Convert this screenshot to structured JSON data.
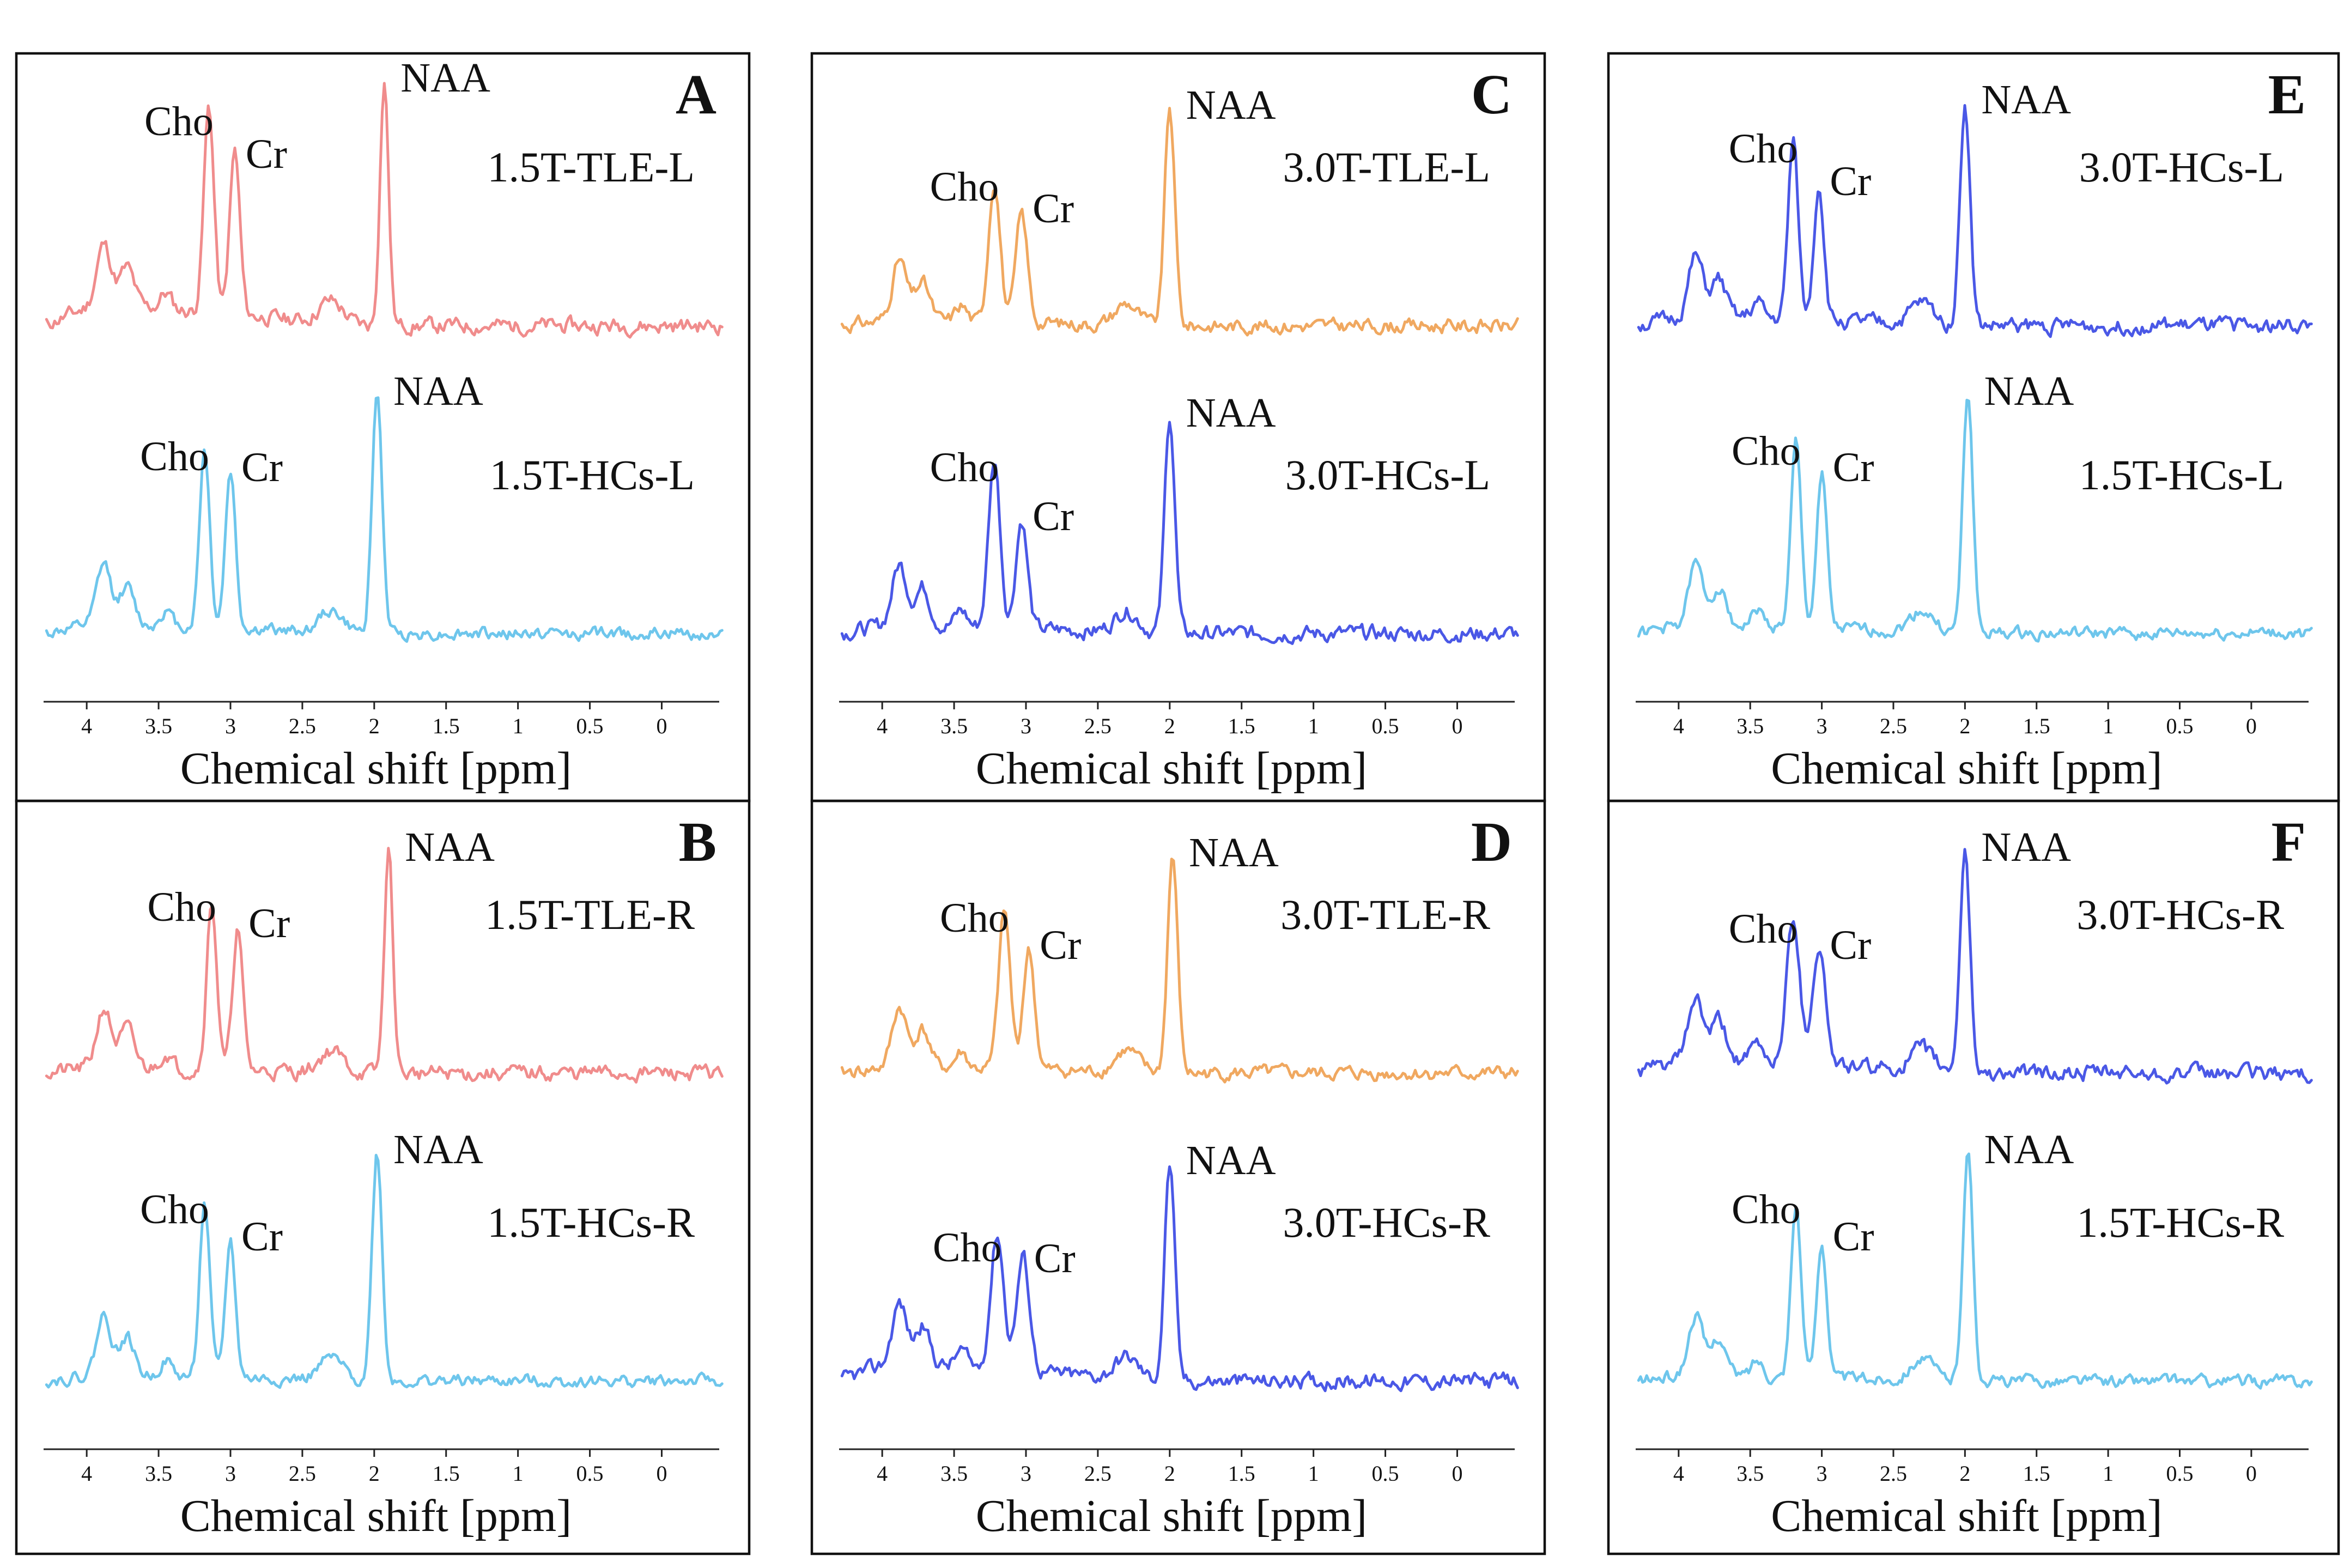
{
  "chart_data": [
    {
      "type": "line",
      "panel": "A",
      "xlabel": "Chemical shift [ppm]",
      "xlim": [
        4.3,
        -0.4
      ],
      "xticks": [
        "4",
        "3.5",
        "3",
        "2.5",
        "2",
        "1.5",
        "1",
        "0.5",
        "0"
      ],
      "series": [
        {
          "name": "1.5T-TLE-L",
          "color": "#F08C8C",
          "seed": 11,
          "noise": 9,
          "baseline_drift": 0.35,
          "peaks": [
            {
              "label": "Cho",
              "ppm": 3.15,
              "amp": 380,
              "width": 0.035
            },
            {
              "label": "Cr",
              "ppm": 2.97,
              "amp": 300,
              "width": 0.035
            },
            {
              "label": "NAA",
              "ppm": 1.93,
              "amp": 450,
              "width": 0.03
            }
          ]
        },
        {
          "name": "1.5T-HCs-L",
          "color": "#6EC6EC",
          "seed": 12,
          "noise": 7,
          "baseline_drift": 0.15,
          "peaks": [
            {
              "label": "Cho",
              "ppm": 3.18,
              "amp": 330,
              "width": 0.035
            },
            {
              "label": "Cr",
              "ppm": 3.0,
              "amp": 290,
              "width": 0.035
            },
            {
              "label": "NAA",
              "ppm": 1.98,
              "amp": 440,
              "width": 0.035
            }
          ]
        }
      ]
    },
    {
      "type": "line",
      "panel": "B",
      "xlabel": "Chemical shift [ppm]",
      "xlim": [
        4.3,
        -0.4
      ],
      "xticks": [
        "4",
        "3.5",
        "3",
        "2.5",
        "2",
        "1.5",
        "1",
        "0.5",
        "0"
      ],
      "series": [
        {
          "name": "1.5T-TLE-R",
          "color": "#F08C8C",
          "seed": 21,
          "noise": 9,
          "baseline_drift": 0.1,
          "peaks": [
            {
              "label": "Cho",
              "ppm": 3.13,
              "amp": 310,
              "width": 0.035
            },
            {
              "label": "Cr",
              "ppm": 2.95,
              "amp": 260,
              "width": 0.035
            },
            {
              "label": "NAA",
              "ppm": 1.9,
              "amp": 410,
              "width": 0.03
            }
          ]
        },
        {
          "name": "1.5T-HCs-R",
          "color": "#6EC6EC",
          "seed": 22,
          "noise": 7,
          "baseline_drift": 0.1,
          "peaks": [
            {
              "label": "Cho",
              "ppm": 3.18,
              "amp": 320,
              "width": 0.035
            },
            {
              "label": "Cr",
              "ppm": 3.0,
              "amp": 250,
              "width": 0.035
            },
            {
              "label": "NAA",
              "ppm": 1.98,
              "amp": 420,
              "width": 0.035
            }
          ]
        }
      ]
    },
    {
      "type": "line",
      "panel": "C",
      "xlabel": "Chemical shift [ppm]",
      "xlim": [
        4.3,
        -0.4
      ],
      "xticks": [
        "4",
        "3.5",
        "3",
        "2.5",
        "2",
        "1.5",
        "1",
        "0.5",
        "0"
      ],
      "series": [
        {
          "name": "3.0T-TLE-L",
          "color": "#F0A860",
          "seed": 31,
          "noise": 8,
          "baseline_drift": 0.1,
          "peaks": [
            {
              "label": "Cho",
              "ppm": 3.22,
              "amp": 260,
              "width": 0.04
            },
            {
              "label": "Cr",
              "ppm": 3.03,
              "amp": 200,
              "width": 0.04
            },
            {
              "label": "NAA",
              "ppm": 2.0,
              "amp": 400,
              "width": 0.035
            }
          ]
        },
        {
          "name": "3.0T-HCs-L",
          "color": "#4A58E6",
          "seed": 32,
          "noise": 9,
          "baseline_drift": 0.15,
          "peaks": [
            {
              "label": "Cho",
              "ppm": 3.22,
              "amp": 310,
              "width": 0.04
            },
            {
              "label": "Cr",
              "ppm": 3.03,
              "amp": 200,
              "width": 0.04
            },
            {
              "label": "NAA",
              "ppm": 2.0,
              "amp": 400,
              "width": 0.035
            }
          ]
        }
      ]
    },
    {
      "type": "line",
      "panel": "D",
      "xlabel": "Chemical shift [ppm]",
      "xlim": [
        4.3,
        -0.4
      ],
      "xticks": [
        "4",
        "3.5",
        "3",
        "2.5",
        "2",
        "1.5",
        "1",
        "0.5",
        "0"
      ],
      "series": [
        {
          "name": "3.0T-TLE-R",
          "color": "#F0A860",
          "seed": 41,
          "noise": 8,
          "baseline_drift": 0.1,
          "peaks": [
            {
              "label": "Cho",
              "ppm": 3.15,
              "amp": 290,
              "width": 0.04
            },
            {
              "label": "Cr",
              "ppm": 2.98,
              "amp": 220,
              "width": 0.04
            },
            {
              "label": "NAA",
              "ppm": 1.98,
              "amp": 400,
              "width": 0.035
            }
          ]
        },
        {
          "name": "3.0T-HCs-R",
          "color": "#4A58E6",
          "seed": 42,
          "noise": 9,
          "baseline_drift": 0.3,
          "peaks": [
            {
              "label": "Cho",
              "ppm": 3.2,
              "amp": 250,
              "width": 0.045
            },
            {
              "label": "Cr",
              "ppm": 3.02,
              "amp": 210,
              "width": 0.045
            },
            {
              "label": "NAA",
              "ppm": 2.0,
              "amp": 400,
              "width": 0.035
            }
          ]
        }
      ]
    },
    {
      "type": "line",
      "panel": "E",
      "xlabel": "Chemical shift [ppm]",
      "xlim": [
        4.3,
        -0.4
      ],
      "xticks": [
        "4",
        "3.5",
        "3",
        "2.5",
        "2",
        "1.5",
        "1",
        "0.5",
        "0"
      ],
      "series": [
        {
          "name": "3.0T-HCs-L",
          "color": "#4A58E6",
          "seed": 51,
          "noise": 9,
          "baseline_drift": 0.15,
          "peaks": [
            {
              "label": "Cho",
              "ppm": 3.2,
              "amp": 330,
              "width": 0.035
            },
            {
              "label": "Cr",
              "ppm": 3.02,
              "amp": 250,
              "width": 0.035
            },
            {
              "label": "NAA",
              "ppm": 2.0,
              "amp": 410,
              "width": 0.035
            }
          ]
        },
        {
          "name": "1.5T-HCs-L",
          "color": "#6EC6EC",
          "seed": 52,
          "noise": 7,
          "baseline_drift": 0.15,
          "peaks": [
            {
              "label": "Cho",
              "ppm": 3.18,
              "amp": 340,
              "width": 0.035
            },
            {
              "label": "Cr",
              "ppm": 3.0,
              "amp": 290,
              "width": 0.035
            },
            {
              "label": "NAA",
              "ppm": 1.98,
              "amp": 440,
              "width": 0.035
            }
          ]
        }
      ]
    },
    {
      "type": "line",
      "panel": "F",
      "xlabel": "Chemical shift [ppm]",
      "xlim": [
        4.3,
        -0.4
      ],
      "xticks": [
        "4",
        "3.5",
        "3",
        "2.5",
        "2",
        "1.5",
        "1",
        "0.5",
        "0"
      ],
      "series": [
        {
          "name": "3.0T-HCs-R",
          "color": "#4A58E6",
          "seed": 61,
          "noise": 9,
          "baseline_drift": 0.25,
          "peaks": [
            {
              "label": "Cho",
              "ppm": 3.2,
              "amp": 270,
              "width": 0.045
            },
            {
              "label": "Cr",
              "ppm": 3.02,
              "amp": 220,
              "width": 0.045
            },
            {
              "label": "NAA",
              "ppm": 2.0,
              "amp": 410,
              "width": 0.035
            }
          ]
        },
        {
          "name": "1.5T-HCs-R",
          "color": "#6EC6EC",
          "seed": 62,
          "noise": 7,
          "baseline_drift": 0.1,
          "peaks": [
            {
              "label": "Cho",
              "ppm": 3.18,
              "amp": 320,
              "width": 0.035
            },
            {
              "label": "Cr",
              "ppm": 3.0,
              "amp": 250,
              "width": 0.035
            },
            {
              "label": "NAA",
              "ppm": 1.98,
              "amp": 420,
              "width": 0.035
            }
          ]
        }
      ]
    }
  ]
}
